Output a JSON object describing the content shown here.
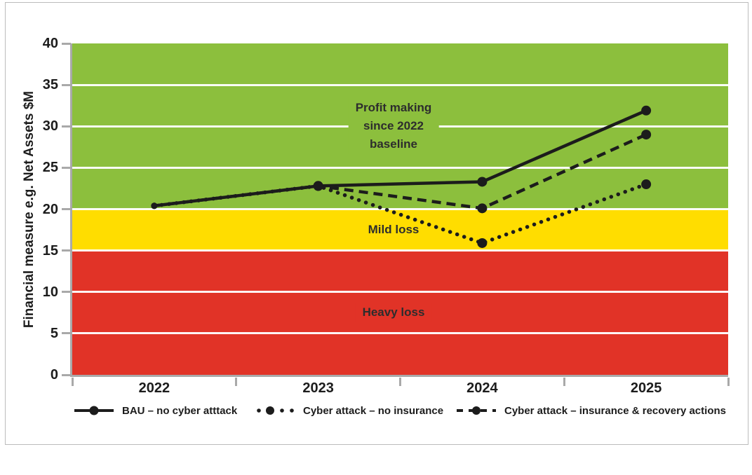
{
  "figure": {
    "background_color": "#ffffff",
    "border_color": "#bcbcbc"
  },
  "chart_data": {
    "type": "line",
    "title": "",
    "y_axis_title": "Financial measure e.g. Net Assets $M",
    "x_categories": [
      "2022",
      "2023",
      "2024",
      "2025"
    ],
    "y_ticks": [
      0,
      5,
      10,
      15,
      20,
      25,
      30,
      35,
      40
    ],
    "ylim": [
      0,
      40
    ],
    "grid": "horizontal white lines every 5 units",
    "legend_position": "bottom",
    "line_color": "#1c1c1c",
    "axis_color": "#a9a9a9",
    "bands": [
      {
        "name": "profit-zone",
        "label": "Profit making\nsince 2022\nbaseline",
        "from": 20,
        "to": 40,
        "color": "#8cbf3d"
      },
      {
        "name": "mild-loss-zone",
        "label": "Mild loss",
        "from": 15,
        "to": 20,
        "color": "#ffdd00"
      },
      {
        "name": "heavy-loss-zone",
        "label": "Heavy loss",
        "from": 0,
        "to": 15,
        "color": "#e13327"
      }
    ],
    "series": [
      {
        "name": "BAU – no cyber atttack",
        "style": "solid",
        "values": [
          20.4,
          22.8,
          23.3,
          31.9
        ]
      },
      {
        "name": "Cyber attack – no insurance",
        "style": "dotted",
        "values": [
          20.4,
          22.8,
          15.9,
          23.0
        ]
      },
      {
        "name": "Cyber attack – insurance & recovery actions",
        "style": "dashed",
        "values": [
          20.4,
          22.8,
          20.1,
          29.0
        ]
      }
    ]
  }
}
